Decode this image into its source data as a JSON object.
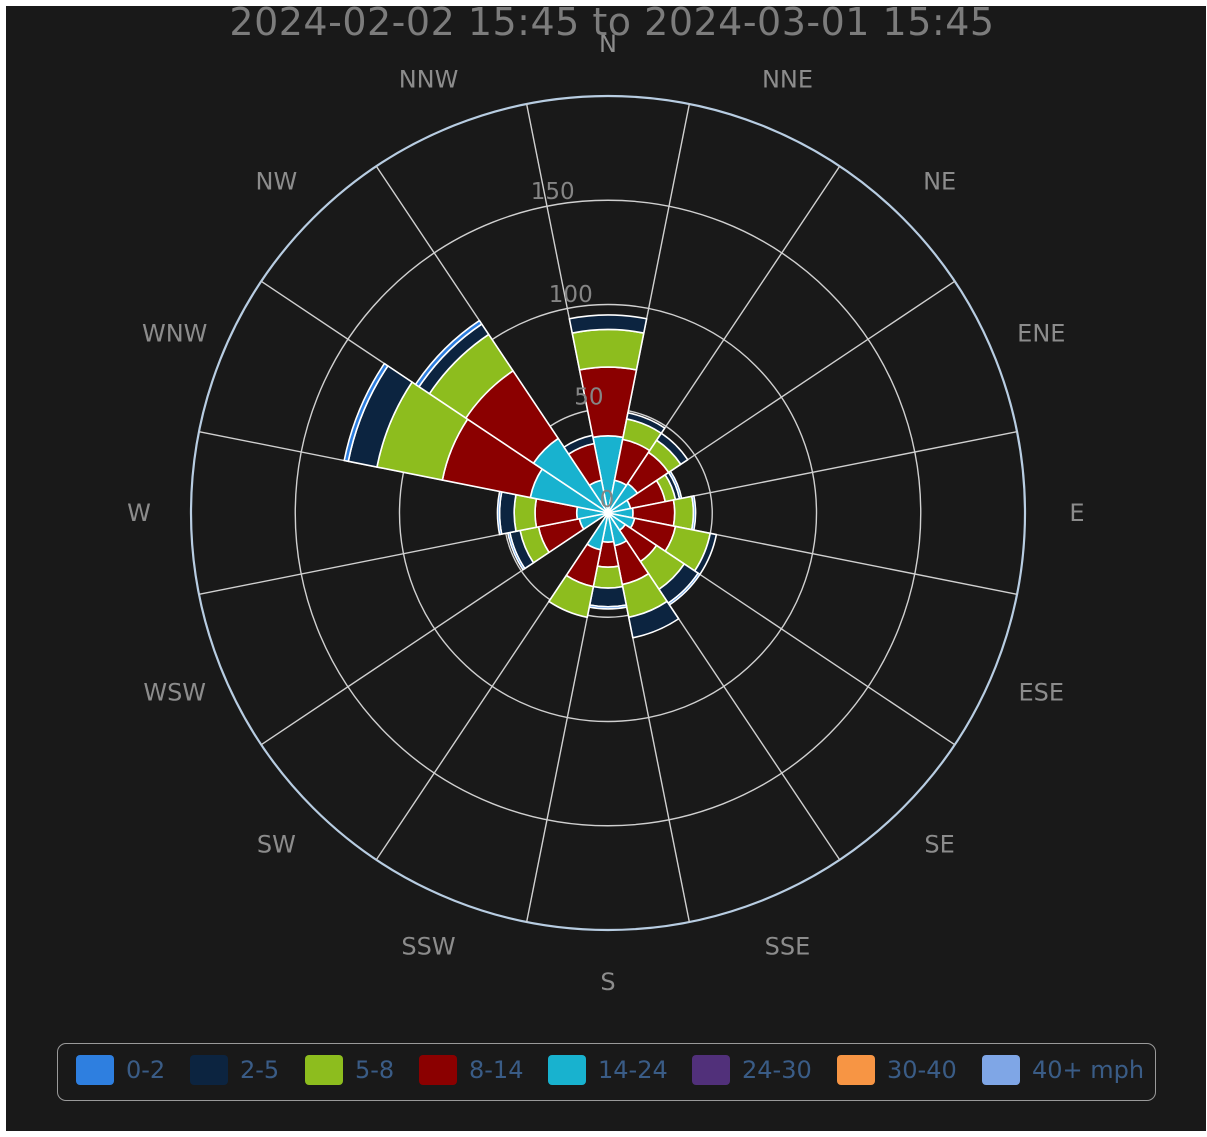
{
  "title": "2024-02-02 15:45 to 2024-03-01 15:45",
  "chart_data": {
    "type": "polar-stacked-bar",
    "title": "2024-02-02 15:45 to 2024-03-01 15:45",
    "directions": [
      "N",
      "NNE",
      "NE",
      "ENE",
      "E",
      "ESE",
      "SE",
      "SSE",
      "S",
      "SSW",
      "SW",
      "WSW",
      "W",
      "WNW",
      "NW",
      "NNW"
    ],
    "radial_ticks": [
      "0",
      "50",
      "100",
      "150"
    ],
    "radial_max": 200,
    "speed_unit": "mph",
    "series": [
      {
        "name": "0-2",
        "color": "#2e7fe0",
        "values": [
          0,
          0,
          0,
          1,
          1,
          0,
          1,
          0,
          1,
          0,
          0,
          1,
          1,
          2,
          2,
          0
        ]
      },
      {
        "name": "2-5",
        "color": "#0c2440",
        "values": [
          7,
          3,
          4,
          2,
          0,
          3,
          8,
          10,
          9,
          0,
          0,
          5,
          7,
          14,
          6,
          4
        ]
      },
      {
        "name": "5-8",
        "color": "#8dbd1e",
        "values": [
          18,
          10,
          7,
          5,
          9,
          17,
          16,
          16,
          10,
          15,
          0,
          9,
          10,
          32,
          21,
          0
        ]
      },
      {
        "name": "8-14",
        "color": "#8b0000",
        "values": [
          33,
          20,
          18,
          17,
          20,
          20,
          18,
          19,
          12,
          18,
          0,
          20,
          20,
          43,
          39,
          18
        ]
      },
      {
        "name": "14-24",
        "color": "#18b2cf",
        "values": [
          37,
          16,
          17,
          11,
          12,
          13,
          10,
          16,
          14,
          18,
          0,
          14,
          15,
          38,
          43,
          16
        ]
      },
      {
        "name": "24-30",
        "color": "#51307a",
        "values": [
          0,
          0,
          0,
          0,
          0,
          0,
          0,
          0,
          0,
          0,
          0,
          0,
          0,
          0,
          0,
          0
        ]
      },
      {
        "name": "30-40",
        "color": "#f79544",
        "values": [
          0,
          0,
          0,
          0,
          0,
          0,
          0,
          0,
          0,
          0,
          0,
          0,
          0,
          0,
          0,
          0
        ]
      },
      {
        "name": "40+ mph",
        "color": "#7fa6e6",
        "values": [
          0,
          0,
          0,
          0,
          0,
          0,
          0,
          0,
          0,
          0,
          0,
          0,
          0,
          0,
          0,
          0
        ]
      }
    ]
  }
}
